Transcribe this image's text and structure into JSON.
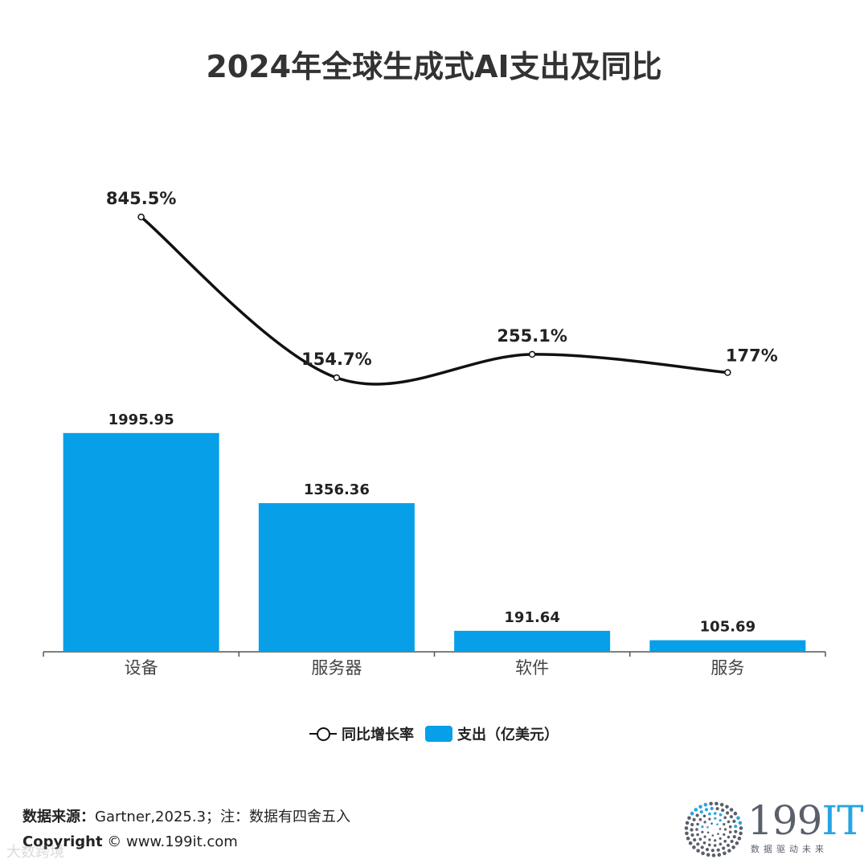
{
  "title": "2024年全球生成式AI支出及同比",
  "chart_data": {
    "type": "bar",
    "categories": [
      "设备",
      "服务器",
      "软件",
      "服务"
    ],
    "series": [
      {
        "name": "支出（亿美元）",
        "kind": "bar",
        "color": "#069fe8",
        "values": [
          1995.95,
          1356.36,
          191.64,
          105.69
        ],
        "labels": [
          "1995.95",
          "1356.36",
          "191.64",
          "105.69"
        ]
      },
      {
        "name": "同比增长率",
        "kind": "line",
        "color": "#111111",
        "values": [
          845.5,
          154.7,
          255.1,
          177
        ],
        "labels": [
          "845.5%",
          "154.7%",
          "255.1%",
          "177%"
        ]
      }
    ],
    "legend_position": "bottom",
    "grid": false
  },
  "legend": {
    "line_label": "同比增长率",
    "bar_label": "支出（亿美元）"
  },
  "footer": {
    "source_label": "数据来源：",
    "source_text": "Gartner,2025.3；注：数据有四舍五入",
    "copyright_label": "Copyright",
    "copyright_text": " © www.199it.com",
    "watermark": "大数跨境"
  },
  "logo": {
    "brand_digits": "199",
    "brand_letters": "IT",
    "tagline": "数据驱动未来"
  }
}
